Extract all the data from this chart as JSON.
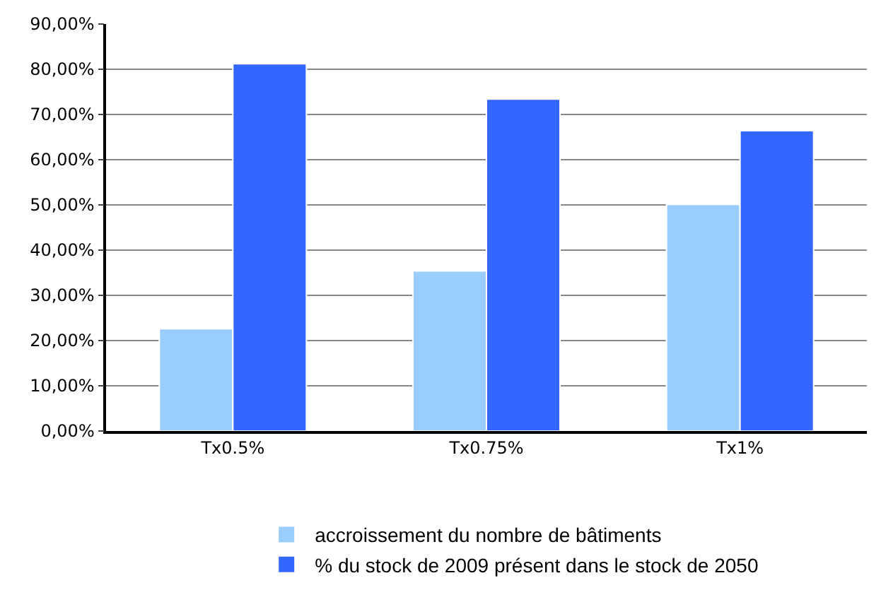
{
  "chart_data": {
    "type": "bar",
    "categories": [
      "Tx0.5%",
      "Tx0.75%",
      "Tx1%"
    ],
    "series": [
      {
        "name": "accroissement du nombre de bâtiments",
        "color": "#99ccff",
        "values": [
          22.6,
          35.4,
          50.1
        ]
      },
      {
        "name": "% du stock de 2009 présent dans le stock de 2050",
        "color": "#3366ff",
        "values": [
          81.2,
          73.4,
          66.4
        ]
      }
    ],
    "ylim": [
      0,
      90
    ],
    "yticks": [
      {
        "value": 0,
        "label": "0,00%"
      },
      {
        "value": 10,
        "label": "10,00%"
      },
      {
        "value": 20,
        "label": "20,00%"
      },
      {
        "value": 30,
        "label": "30,00%"
      },
      {
        "value": 40,
        "label": "40,00%"
      },
      {
        "value": 50,
        "label": "50,00%"
      },
      {
        "value": 60,
        "label": "60,00%"
      },
      {
        "value": 70,
        "label": "70,00%"
      },
      {
        "value": 80,
        "label": "80,00%"
      },
      {
        "value": 90,
        "label": "90,00%"
      }
    ],
    "grid": "y",
    "legend": "bottom"
  }
}
